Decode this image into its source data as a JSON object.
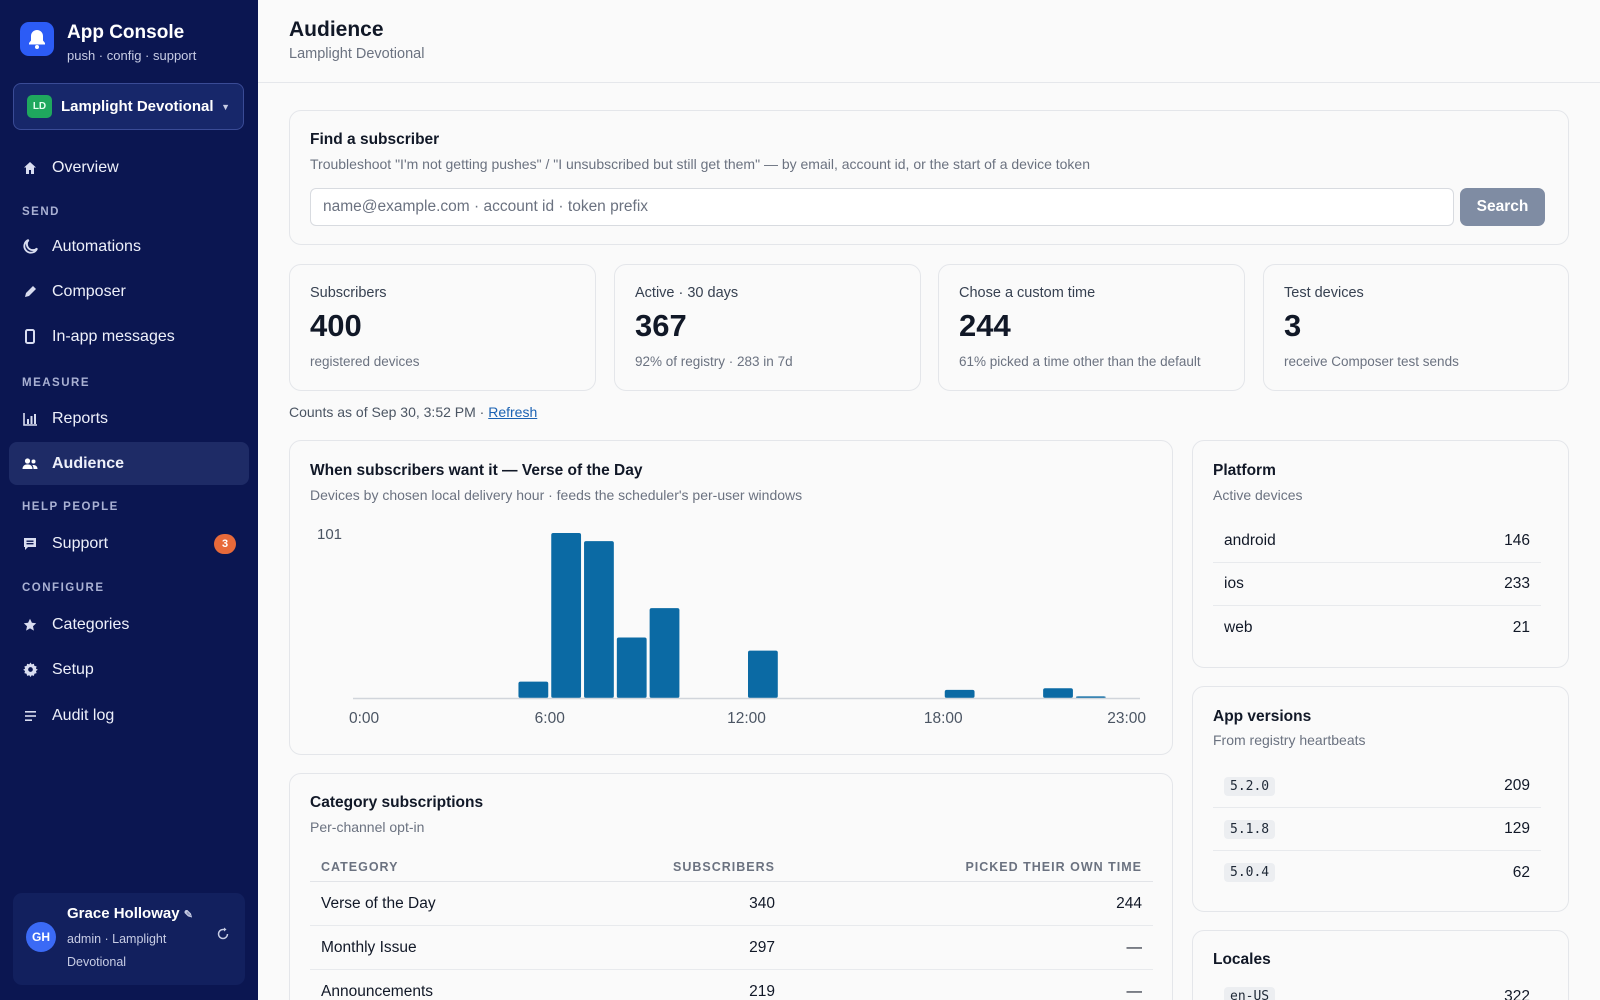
{
  "app": {
    "title": "App Console",
    "subtitle": "push · config · support"
  },
  "org": {
    "initials": "LD",
    "name": "Lamplight Devotional"
  },
  "nav": {
    "overview": "Overview",
    "send_section": "SEND",
    "automations": "Automations",
    "composer": "Composer",
    "inapp": "In-app messages",
    "measure_section": "MEASURE",
    "reports": "Reports",
    "audience": "Audience",
    "help_section": "HELP PEOPLE",
    "support": "Support",
    "support_badge": "3",
    "configure_section": "CONFIGURE",
    "categories": "Categories",
    "setup": "Setup",
    "audit": "Audit log"
  },
  "user": {
    "initials": "GH",
    "name": "Grace Holloway",
    "edit_glyph": "✎",
    "role": "admin · Lamplight Devotional"
  },
  "header": {
    "title": "Audience",
    "subtitle": "Lamplight Devotional"
  },
  "search": {
    "title": "Find a subscriber",
    "description": "Troubleshoot \"I'm not getting pushes\" / \"I unsubscribed but still get them\" — by email, account id, or the start of a device token",
    "placeholder": "name@example.com · account id · token prefix",
    "button": "Search"
  },
  "stats": [
    {
      "label": "Subscribers",
      "value": "400",
      "note": "registered devices"
    },
    {
      "label": "Active · 30 days",
      "value": "367",
      "note": "92% of registry · 283 in 7d"
    },
    {
      "label": "Chose a custom time",
      "value": "244",
      "note": "61% picked a time other than the default"
    },
    {
      "label": "Test devices",
      "value": "3",
      "note": "receive Composer test sends"
    }
  ],
  "counts": {
    "text": "Counts as of Sep 30, 3:52 PM · ",
    "refresh": "Refresh"
  },
  "chart": {
    "title": "When subscribers want it — Verse of the Day",
    "subtitle": "Devices by chosen local delivery hour · feeds the scheduler's per-user windows"
  },
  "chart_data": {
    "type": "bar",
    "title": "When subscribers want it — Verse of the Day",
    "subtitle": "Devices by chosen local delivery hour · feeds the scheduler's per-user windows",
    "x": [
      0,
      1,
      2,
      3,
      4,
      5,
      6,
      7,
      8,
      9,
      10,
      11,
      12,
      13,
      14,
      15,
      16,
      17,
      18,
      19,
      20,
      21,
      22,
      23
    ],
    "values": [
      0,
      0,
      0,
      0,
      0,
      10,
      101,
      96,
      37,
      55,
      0,
      0,
      29,
      0,
      0,
      0,
      0,
      0,
      5,
      0,
      0,
      6,
      1,
      0
    ],
    "xticks": [
      "0:00",
      "6:00",
      "12:00",
      "18:00",
      "23:00"
    ],
    "ymax_label": "101",
    "ylim": [
      0,
      101
    ],
    "color": "#0b6aa4",
    "grid": false
  },
  "platform": {
    "title": "Platform",
    "subtitle": "Active devices",
    "rows": [
      {
        "name": "android",
        "value": "146"
      },
      {
        "name": "ios",
        "value": "233"
      },
      {
        "name": "web",
        "value": "21"
      }
    ]
  },
  "versions": {
    "title": "App versions",
    "subtitle": "From registry heartbeats",
    "rows": [
      {
        "name": "5.2.0",
        "value": "209"
      },
      {
        "name": "5.1.8",
        "value": "129"
      },
      {
        "name": "5.0.4",
        "value": "62"
      }
    ]
  },
  "locales": {
    "title": "Locales",
    "rows": [
      {
        "name": "en-US",
        "value": "322"
      }
    ]
  },
  "categories": {
    "title": "Category subscriptions",
    "subtitle": "Per-channel opt-in",
    "columns": [
      "CATEGORY",
      "SUBSCRIBERS",
      "PICKED THEIR OWN TIME"
    ],
    "rows": [
      {
        "name": "Verse of the Day",
        "subscribers": "340",
        "own_time": "244"
      },
      {
        "name": "Monthly Issue",
        "subscribers": "297",
        "own_time": "—"
      },
      {
        "name": "Announcements",
        "subscribers": "219",
        "own_time": "—"
      }
    ]
  }
}
